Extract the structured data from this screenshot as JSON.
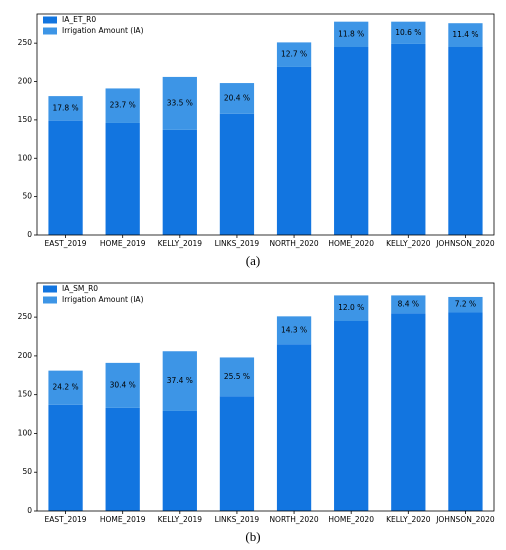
{
  "chart_data": [
    {
      "type": "bar",
      "stacked": true,
      "caption": "(a)",
      "categories": [
        "EAST_2019",
        "HOME_2019",
        "KELLY_2019",
        "LINKS_2019",
        "NORTH_2020",
        "HOME_2020",
        "KELLY_2020",
        "JOHNSON_2020"
      ],
      "series": [
        {
          "name": "IA_ET_R0",
          "color": "#1275e0",
          "values": [
            149,
            146,
            137,
            158,
            219,
            245,
            249,
            245
          ]
        },
        {
          "name": "Irrigation Amount (IA)",
          "color": "#3d95e6",
          "values": [
            32,
            45,
            69,
            40,
            32,
            33,
            29,
            31
          ]
        }
      ],
      "annotations": [
        "17.8 %",
        "23.7 %",
        "33.5 %",
        "20.4 %",
        "12.7 %",
        "11.8 %",
        "10.6 %",
        "11.4 %"
      ],
      "ylim": [
        0,
        288
      ],
      "yticks": [
        0,
        50,
        100,
        150,
        200,
        250
      ],
      "legend": "upper left"
    },
    {
      "type": "bar",
      "stacked": true,
      "caption": "(b)",
      "categories": [
        "EAST_2019",
        "HOME_2019",
        "KELLY_2019",
        "LINKS_2019",
        "NORTH_2020",
        "HOME_2020",
        "KELLY_2020",
        "JOHNSON_2020"
      ],
      "series": [
        {
          "name": "IA_SM_R0",
          "color": "#1275e0",
          "values": [
            137,
            133,
            129,
            148,
            215,
            245,
            255,
            256
          ]
        },
        {
          "name": "Irrigation Amount (IA)",
          "color": "#3d95e6",
          "values": [
            44,
            58,
            77,
            50,
            36,
            33,
            23,
            20
          ]
        }
      ],
      "annotations": [
        "24.2 %",
        "30.4 %",
        "37.4 %",
        "25.5 %",
        "14.3 %",
        "12.0 %",
        "8.4 %",
        "7.2 %"
      ],
      "ylim": [
        0,
        294
      ],
      "yticks": [
        0,
        50,
        100,
        150,
        200,
        250
      ],
      "legend": "upper left"
    }
  ]
}
